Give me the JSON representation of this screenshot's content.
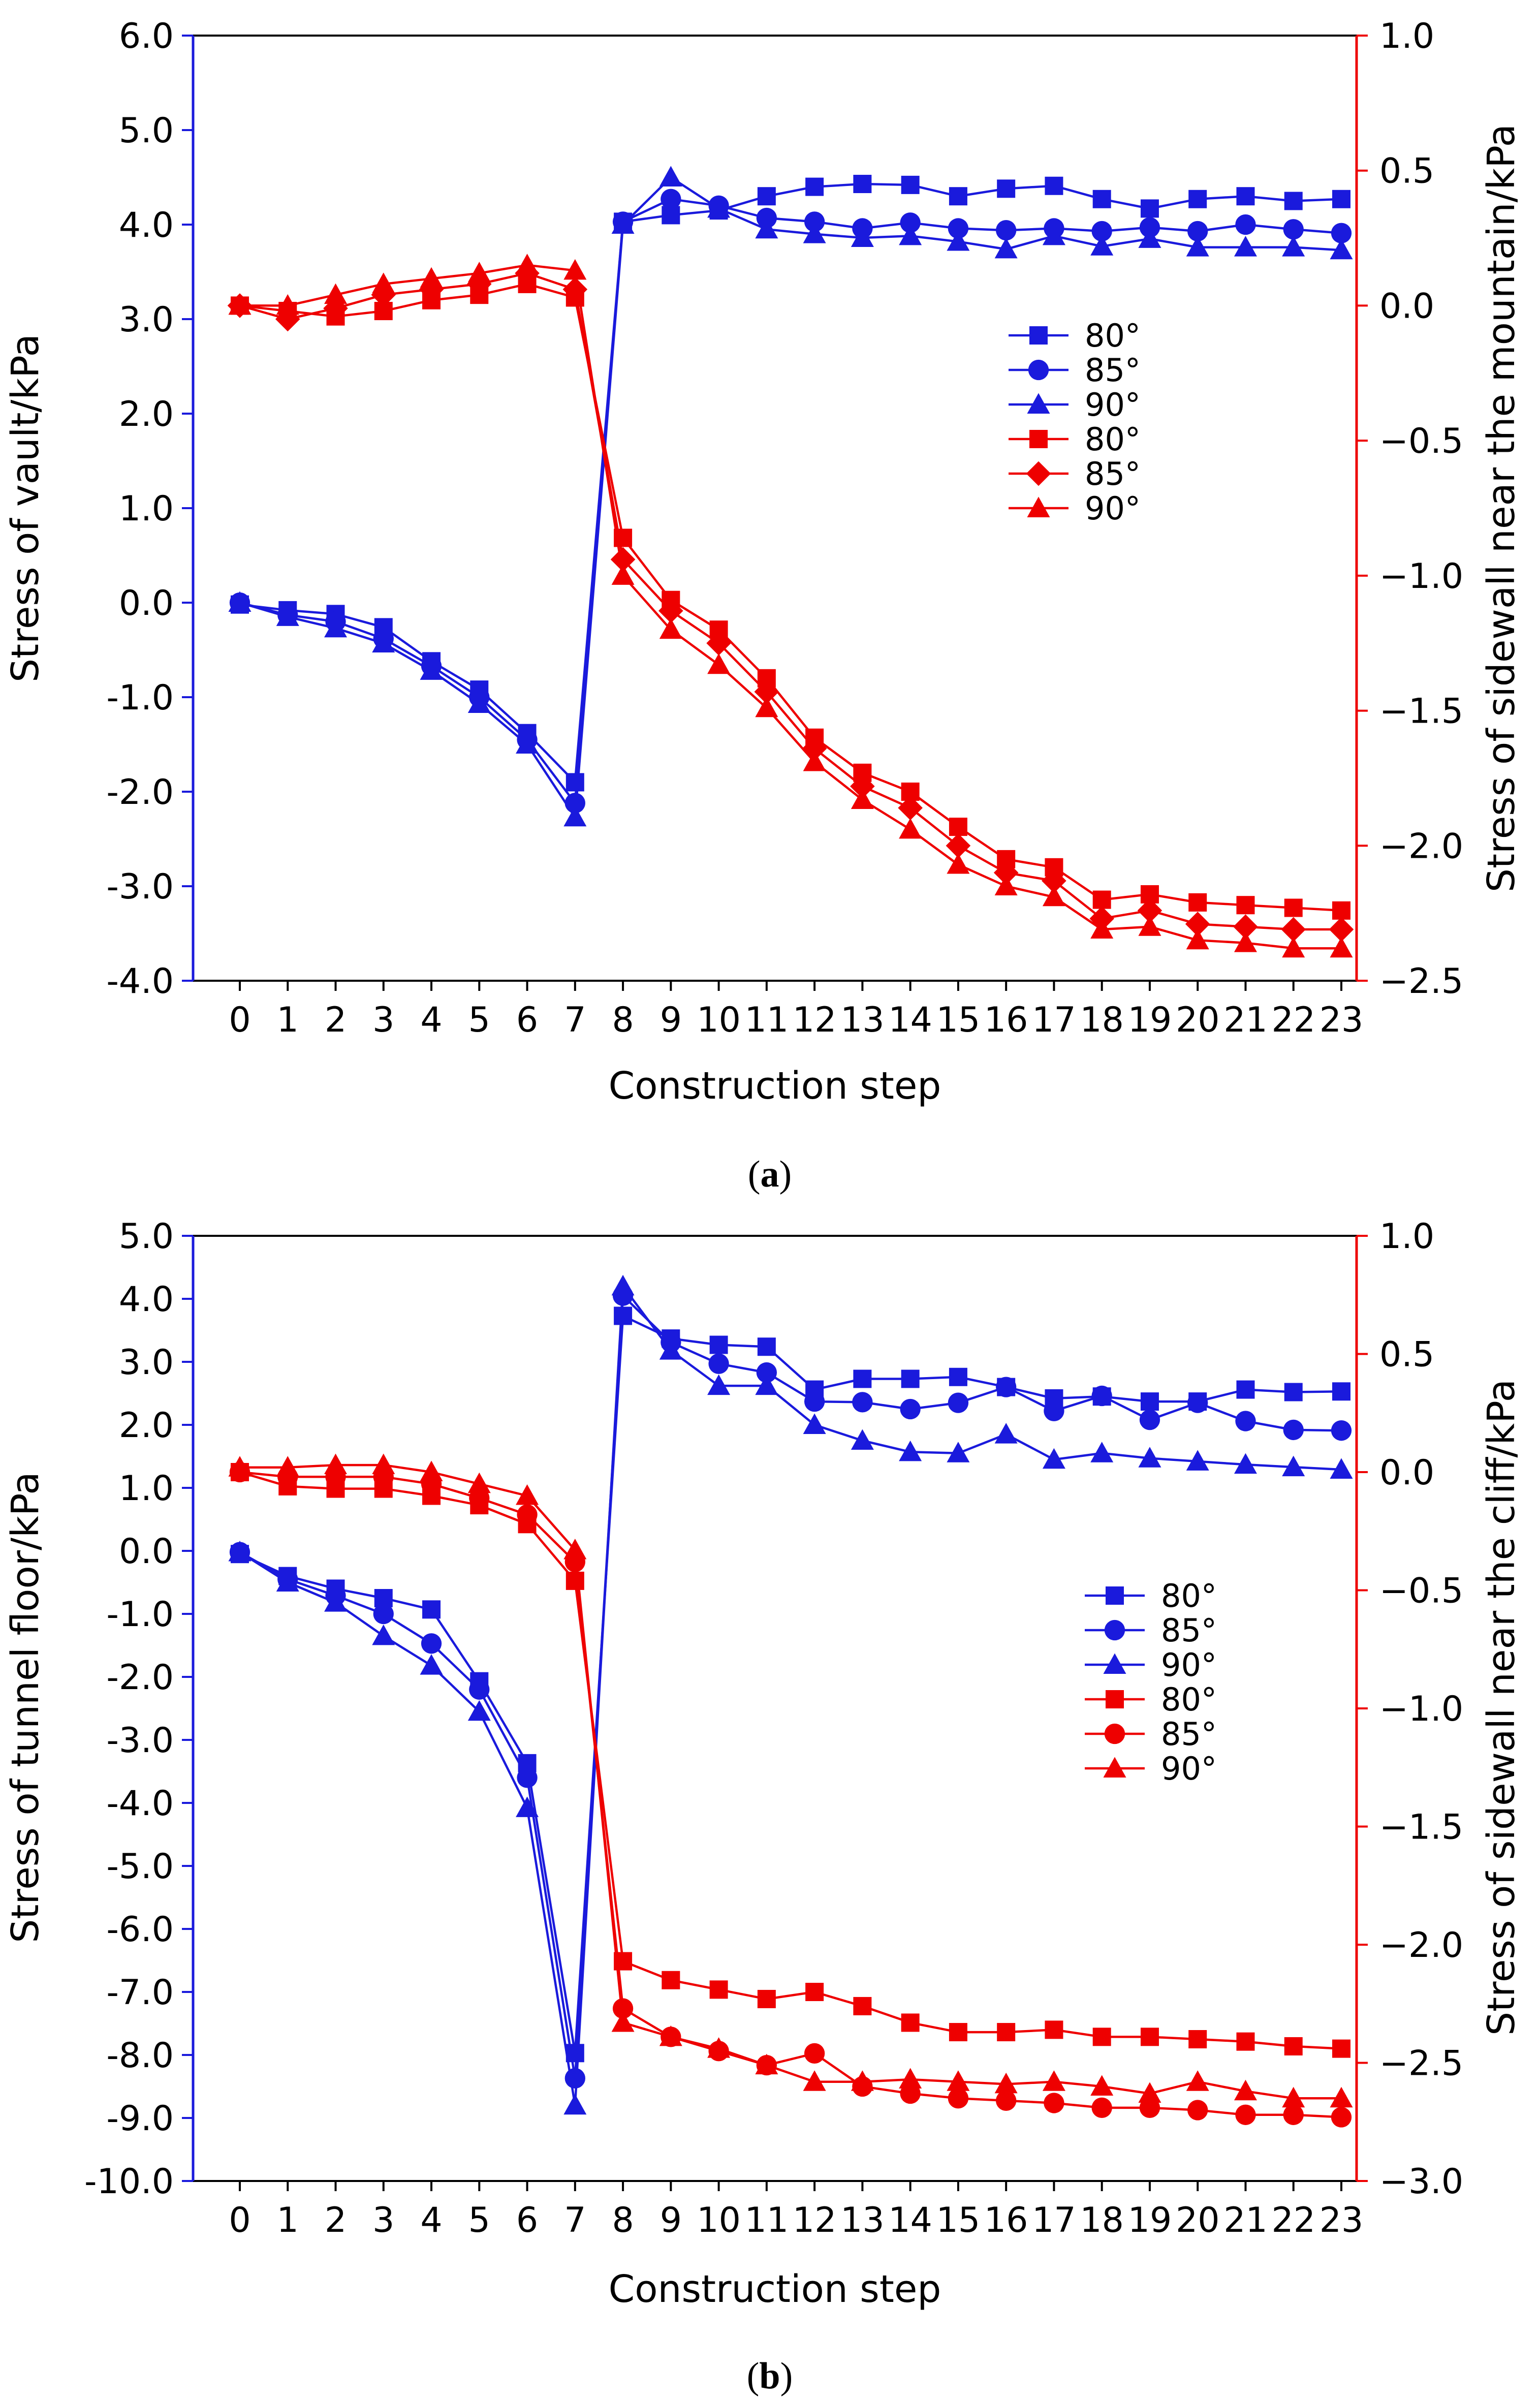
{
  "colors": {
    "blue": "#1a1adc",
    "red": "#ee0000",
    "black": "#000000"
  },
  "chart_data": [
    {
      "panel_label": "(a)",
      "panel_letter": "a",
      "type": "line",
      "categories": [
        "0",
        "1",
        "2",
        "3",
        "4",
        "5",
        "6",
        "7",
        "8",
        "9",
        "10",
        "11",
        "12",
        "13",
        "14",
        "15",
        "16",
        "17",
        "18",
        "19",
        "20",
        "21",
        "22",
        "23"
      ],
      "xlabel": "Construction step",
      "ylabel_left": "Stress of vault/kPa",
      "ylabel_right": "Stress of sidewall near the mountain/kPa",
      "ylim_left": [
        -4.0,
        6.0
      ],
      "yticks_left": [
        "6.0",
        "5.0",
        "4.0",
        "3.0",
        "2.0",
        "1.0",
        "0.0",
        "-1.0",
        "-2.0",
        "-3.0",
        "-4.0"
      ],
      "ylim_right": [
        -2.5,
        1.0
      ],
      "yticks_right": [
        "1.0",
        "0.5",
        "0.0",
        "−0.5",
        "−1.0",
        "−1.5",
        "−2.0",
        "−2.5"
      ],
      "legend_position": "right-middle",
      "series": [
        {
          "name": "80°",
          "axis": "left",
          "color": "blue",
          "marker": "square",
          "values": [
            -0.02,
            -0.08,
            -0.12,
            -0.26,
            -0.62,
            -0.92,
            -1.38,
            -1.9,
            4.03,
            4.1,
            4.15,
            4.3,
            4.4,
            4.43,
            4.42,
            4.3,
            4.38,
            4.41,
            4.27,
            4.17,
            4.27,
            4.3,
            4.25,
            4.27
          ]
        },
        {
          "name": "85°",
          "axis": "left",
          "color": "blue",
          "marker": "circle",
          "values": [
            0.0,
            -0.13,
            -0.2,
            -0.38,
            -0.67,
            -1.0,
            -1.45,
            -2.12,
            4.03,
            4.27,
            4.2,
            4.07,
            4.03,
            3.96,
            4.02,
            3.96,
            3.94,
            3.96,
            3.93,
            3.97,
            3.93,
            4.0,
            3.95,
            3.91
          ]
        },
        {
          "name": "90°",
          "axis": "left",
          "color": "blue",
          "marker": "triangle",
          "values": [
            0.0,
            -0.15,
            -0.27,
            -0.43,
            -0.72,
            -1.07,
            -1.5,
            -2.27,
            4.0,
            4.5,
            4.17,
            3.95,
            3.9,
            3.86,
            3.88,
            3.82,
            3.74,
            3.88,
            3.77,
            3.85,
            3.76,
            3.76,
            3.76,
            3.73
          ]
        },
        {
          "name": "80°",
          "axis": "right",
          "color": "red",
          "marker": "square",
          "values": [
            0.0,
            -0.02,
            -0.04,
            -0.02,
            0.02,
            0.04,
            0.08,
            0.03,
            -0.86,
            -1.09,
            -1.2,
            -1.38,
            -1.6,
            -1.73,
            -1.8,
            -1.93,
            -2.05,
            -2.08,
            -2.2,
            -2.18,
            -2.21,
            -2.22,
            -2.23,
            -2.24
          ]
        },
        {
          "name": "85°",
          "axis": "right",
          "color": "red",
          "marker": "diamond",
          "values": [
            0.0,
            -0.05,
            -0.01,
            0.04,
            0.06,
            0.08,
            0.12,
            0.06,
            -0.94,
            -1.13,
            -1.25,
            -1.43,
            -1.64,
            -1.78,
            -1.86,
            -2.0,
            -2.1,
            -2.13,
            -2.27,
            -2.24,
            -2.29,
            -2.3,
            -2.31,
            -2.31
          ]
        },
        {
          "name": "90°",
          "axis": "right",
          "color": "red",
          "marker": "triangle",
          "values": [
            0.0,
            0.0,
            0.04,
            0.08,
            0.1,
            0.12,
            0.15,
            0.13,
            -1.0,
            -1.2,
            -1.33,
            -1.49,
            -1.69,
            -1.83,
            -1.94,
            -2.07,
            -2.15,
            -2.19,
            -2.31,
            -2.3,
            -2.35,
            -2.36,
            -2.38,
            -2.38
          ]
        }
      ]
    },
    {
      "panel_label": "(b)",
      "panel_letter": "b",
      "type": "line",
      "categories": [
        "0",
        "1",
        "2",
        "3",
        "4",
        "5",
        "6",
        "7",
        "8",
        "9",
        "10",
        "11",
        "12",
        "13",
        "14",
        "15",
        "16",
        "17",
        "18",
        "19",
        "20",
        "21",
        "22",
        "23"
      ],
      "xlabel": "Construction step",
      "ylabel_left": "Stress of tunnel floor/kPa",
      "ylabel_right": "Stress of sidewall near the cliff/kPa",
      "ylim_left": [
        -10.0,
        5.0
      ],
      "yticks_left": [
        "5.0",
        "4.0",
        "3.0",
        "2.0",
        "1.0",
        "0.0",
        "-1.0",
        "-2.0",
        "-3.0",
        "-4.0",
        "-5.0",
        "-6.0",
        "-7.0",
        "-8.0",
        "-9.0",
        "-10.0"
      ],
      "ylim_right": [
        -3.0,
        1.0
      ],
      "yticks_right": [
        "1.0",
        "0.5",
        "0.0",
        "−0.5",
        "−1.0",
        "−1.5",
        "−2.0",
        "−2.5",
        "−3.0"
      ],
      "legend_position": "right-middle",
      "series": [
        {
          "name": "80°",
          "axis": "left",
          "color": "blue",
          "marker": "square",
          "values": [
            -0.05,
            -0.4,
            -0.6,
            -0.75,
            -0.93,
            -2.07,
            -3.37,
            -7.97,
            3.73,
            3.37,
            3.27,
            3.24,
            2.56,
            2.73,
            2.73,
            2.76,
            2.6,
            2.42,
            2.45,
            2.37,
            2.37,
            2.56,
            2.52,
            2.53
          ]
        },
        {
          "name": "85°",
          "axis": "left",
          "color": "blue",
          "marker": "circle",
          "values": [
            -0.02,
            -0.45,
            -0.71,
            -1.0,
            -1.47,
            -2.2,
            -3.6,
            -8.37,
            4.05,
            3.31,
            2.97,
            2.83,
            2.37,
            2.36,
            2.25,
            2.35,
            2.6,
            2.22,
            2.46,
            2.08,
            2.35,
            2.06,
            1.92,
            1.91
          ]
        },
        {
          "name": "90°",
          "axis": "left",
          "color": "blue",
          "marker": "triangle",
          "values": [
            -0.02,
            -0.5,
            -0.82,
            -1.35,
            -1.82,
            -2.55,
            -4.08,
            -8.8,
            4.2,
            3.18,
            2.62,
            2.62,
            2.0,
            1.75,
            1.57,
            1.55,
            1.85,
            1.45,
            1.55,
            1.47,
            1.42,
            1.37,
            1.33,
            1.29
          ]
        },
        {
          "name": "80°",
          "axis": "right",
          "color": "red",
          "marker": "square",
          "values": [
            0.0,
            -0.06,
            -0.07,
            -0.07,
            -0.1,
            -0.14,
            -0.22,
            -0.46,
            -2.07,
            -2.15,
            -2.19,
            -2.23,
            -2.2,
            -2.26,
            -2.33,
            -2.37,
            -2.37,
            -2.36,
            -2.39,
            -2.39,
            -2.4,
            -2.41,
            -2.43,
            -2.44
          ]
        },
        {
          "name": "85°",
          "axis": "right",
          "color": "red",
          "marker": "circle",
          "values": [
            0.0,
            -0.02,
            -0.02,
            -0.02,
            -0.05,
            -0.11,
            -0.18,
            -0.38,
            -2.27,
            -2.39,
            -2.45,
            -2.51,
            -2.46,
            -2.6,
            -2.63,
            -2.65,
            -2.66,
            -2.67,
            -2.69,
            -2.69,
            -2.7,
            -2.72,
            -2.72,
            -2.73
          ]
        },
        {
          "name": "90°",
          "axis": "right",
          "color": "red",
          "marker": "triangle",
          "values": [
            0.02,
            0.02,
            0.03,
            0.03,
            0.0,
            -0.05,
            -0.1,
            -0.33,
            -2.33,
            -2.39,
            -2.44,
            -2.51,
            -2.58,
            -2.58,
            -2.57,
            -2.58,
            -2.59,
            -2.58,
            -2.6,
            -2.63,
            -2.58,
            -2.62,
            -2.65,
            -2.65
          ]
        }
      ]
    }
  ]
}
